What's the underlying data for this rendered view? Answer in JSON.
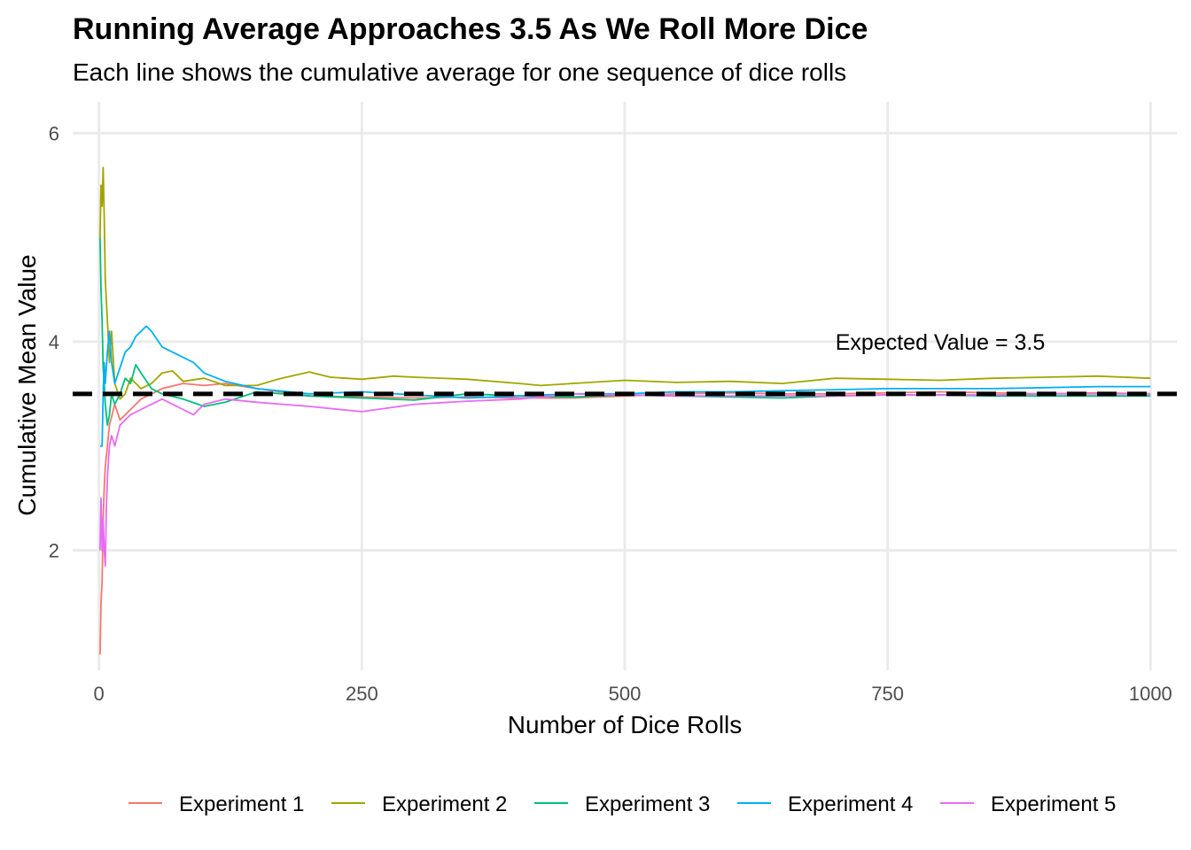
{
  "title": "Running Average Approaches 3.5 As We Roll More Dice",
  "subtitle": "Each line shows the cumulative average for one sequence of dice rolls",
  "chart_data": {
    "type": "line",
    "xlabel": "Number of Dice Rolls",
    "ylabel": "Cumulative Mean Value",
    "xlim": [
      -25,
      1025
    ],
    "ylim": [
      0.85,
      6.3
    ],
    "x_ticks": [
      0,
      250,
      500,
      750,
      1000
    ],
    "x_tick_labels": [
      "0",
      "250",
      "500",
      "750",
      "1000"
    ],
    "y_ticks": [
      2,
      4,
      6
    ],
    "y_tick_labels": [
      "2",
      "4",
      "6"
    ],
    "grid": true,
    "legend_position": "bottom",
    "reference_line": {
      "y": 3.5,
      "style": "dashed",
      "color": "#000000"
    },
    "annotation": {
      "text": "Expected Value = 3.5",
      "x": 800,
      "y": 4.0
    },
    "series": [
      {
        "name": "Experiment 1",
        "color": "#F8766D",
        "points": [
          [
            1,
            1.0
          ],
          [
            2,
            1.5
          ],
          [
            3,
            1.7
          ],
          [
            4,
            2.3
          ],
          [
            5,
            2.6
          ],
          [
            6,
            2.8
          ],
          [
            8,
            3.0
          ],
          [
            10,
            3.2
          ],
          [
            15,
            3.4
          ],
          [
            20,
            3.25
          ],
          [
            30,
            3.35
          ],
          [
            40,
            3.45
          ],
          [
            50,
            3.5
          ],
          [
            60,
            3.55
          ],
          [
            80,
            3.6
          ],
          [
            100,
            3.58
          ],
          [
            120,
            3.6
          ],
          [
            150,
            3.55
          ],
          [
            200,
            3.48
          ],
          [
            250,
            3.47
          ],
          [
            300,
            3.46
          ],
          [
            350,
            3.47
          ],
          [
            400,
            3.46
          ],
          [
            450,
            3.46
          ],
          [
            500,
            3.48
          ],
          [
            550,
            3.5
          ],
          [
            600,
            3.51
          ],
          [
            650,
            3.5
          ],
          [
            700,
            3.5
          ],
          [
            750,
            3.51
          ],
          [
            800,
            3.52
          ],
          [
            850,
            3.51
          ],
          [
            900,
            3.5
          ],
          [
            950,
            3.51
          ],
          [
            1000,
            3.5
          ]
        ]
      },
      {
        "name": "Experiment 2",
        "color": "#A3A500",
        "points": [
          [
            1,
            5.0
          ],
          [
            2,
            5.5
          ],
          [
            3,
            5.3
          ],
          [
            4,
            5.67
          ],
          [
            5,
            5.2
          ],
          [
            6,
            4.6
          ],
          [
            8,
            4.2
          ],
          [
            10,
            3.8
          ],
          [
            12,
            4.1
          ],
          [
            15,
            3.6
          ],
          [
            20,
            3.45
          ],
          [
            25,
            3.5
          ],
          [
            30,
            3.65
          ],
          [
            40,
            3.55
          ],
          [
            50,
            3.6
          ],
          [
            60,
            3.7
          ],
          [
            70,
            3.72
          ],
          [
            80,
            3.62
          ],
          [
            100,
            3.65
          ],
          [
            120,
            3.58
          ],
          [
            150,
            3.58
          ],
          [
            170,
            3.64
          ],
          [
            200,
            3.71
          ],
          [
            220,
            3.66
          ],
          [
            250,
            3.64
          ],
          [
            280,
            3.67
          ],
          [
            300,
            3.66
          ],
          [
            350,
            3.64
          ],
          [
            400,
            3.6
          ],
          [
            420,
            3.58
          ],
          [
            450,
            3.6
          ],
          [
            500,
            3.63
          ],
          [
            550,
            3.61
          ],
          [
            600,
            3.62
          ],
          [
            650,
            3.6
          ],
          [
            700,
            3.65
          ],
          [
            750,
            3.64
          ],
          [
            800,
            3.63
          ],
          [
            850,
            3.65
          ],
          [
            900,
            3.66
          ],
          [
            950,
            3.67
          ],
          [
            1000,
            3.65
          ]
        ]
      },
      {
        "name": "Experiment 3",
        "color": "#00BF7D",
        "points": [
          [
            1,
            5.0
          ],
          [
            2,
            4.5
          ],
          [
            3,
            4.2
          ],
          [
            4,
            3.75
          ],
          [
            5,
            3.6
          ],
          [
            6,
            3.4
          ],
          [
            8,
            3.2
          ],
          [
            10,
            3.3
          ],
          [
            12,
            3.5
          ],
          [
            15,
            3.4
          ],
          [
            20,
            3.5
          ],
          [
            25,
            3.65
          ],
          [
            30,
            3.6
          ],
          [
            35,
            3.78
          ],
          [
            40,
            3.7
          ],
          [
            50,
            3.55
          ],
          [
            60,
            3.5
          ],
          [
            80,
            3.45
          ],
          [
            100,
            3.38
          ],
          [
            120,
            3.42
          ],
          [
            150,
            3.52
          ],
          [
            200,
            3.48
          ],
          [
            250,
            3.46
          ],
          [
            300,
            3.44
          ],
          [
            350,
            3.5
          ],
          [
            400,
            3.48
          ],
          [
            450,
            3.47
          ],
          [
            500,
            3.49
          ],
          [
            550,
            3.48
          ],
          [
            600,
            3.47
          ],
          [
            650,
            3.46
          ],
          [
            700,
            3.48
          ],
          [
            750,
            3.49
          ],
          [
            800,
            3.49
          ],
          [
            850,
            3.48
          ],
          [
            900,
            3.48
          ],
          [
            950,
            3.48
          ],
          [
            1000,
            3.48
          ]
        ]
      },
      {
        "name": "Experiment 4",
        "color": "#00B0F6",
        "points": [
          [
            1,
            3.0
          ],
          [
            2,
            3.0
          ],
          [
            3,
            3.0
          ],
          [
            4,
            3.5
          ],
          [
            5,
            3.8
          ],
          [
            6,
            3.6
          ],
          [
            8,
            3.9
          ],
          [
            10,
            4.1
          ],
          [
            12,
            3.8
          ],
          [
            15,
            3.6
          ],
          [
            20,
            3.75
          ],
          [
            25,
            3.9
          ],
          [
            30,
            3.95
          ],
          [
            35,
            4.05
          ],
          [
            40,
            4.1
          ],
          [
            45,
            4.15
          ],
          [
            50,
            4.1
          ],
          [
            60,
            3.95
          ],
          [
            70,
            3.9
          ],
          [
            80,
            3.85
          ],
          [
            90,
            3.8
          ],
          [
            100,
            3.7
          ],
          [
            120,
            3.62
          ],
          [
            150,
            3.55
          ],
          [
            200,
            3.5
          ],
          [
            250,
            3.52
          ],
          [
            300,
            3.49
          ],
          [
            350,
            3.46
          ],
          [
            400,
            3.48
          ],
          [
            450,
            3.5
          ],
          [
            500,
            3.5
          ],
          [
            550,
            3.52
          ],
          [
            600,
            3.52
          ],
          [
            650,
            3.53
          ],
          [
            700,
            3.54
          ],
          [
            750,
            3.55
          ],
          [
            800,
            3.55
          ],
          [
            850,
            3.55
          ],
          [
            900,
            3.56
          ],
          [
            950,
            3.57
          ],
          [
            1000,
            3.57
          ]
        ]
      },
      {
        "name": "Experiment 5",
        "color": "#E76BF3",
        "points": [
          [
            1,
            2.0
          ],
          [
            2,
            2.5
          ],
          [
            3,
            2.0
          ],
          [
            4,
            2.3
          ],
          [
            5,
            2.0
          ],
          [
            6,
            1.85
          ],
          [
            7,
            2.4
          ],
          [
            8,
            2.7
          ],
          [
            10,
            3.0
          ],
          [
            12,
            3.1
          ],
          [
            15,
            3.0
          ],
          [
            20,
            3.2
          ],
          [
            25,
            3.25
          ],
          [
            30,
            3.3
          ],
          [
            40,
            3.35
          ],
          [
            50,
            3.4
          ],
          [
            60,
            3.45
          ],
          [
            70,
            3.4
          ],
          [
            80,
            3.35
          ],
          [
            90,
            3.3
          ],
          [
            100,
            3.4
          ],
          [
            120,
            3.45
          ],
          [
            150,
            3.42
          ],
          [
            200,
            3.38
          ],
          [
            250,
            3.33
          ],
          [
            300,
            3.4
          ],
          [
            350,
            3.43
          ],
          [
            400,
            3.45
          ],
          [
            450,
            3.5
          ],
          [
            500,
            3.49
          ],
          [
            550,
            3.48
          ],
          [
            600,
            3.48
          ],
          [
            650,
            3.48
          ],
          [
            700,
            3.48
          ],
          [
            750,
            3.49
          ],
          [
            800,
            3.49
          ],
          [
            850,
            3.49
          ],
          [
            900,
            3.5
          ],
          [
            950,
            3.5
          ],
          [
            1000,
            3.5
          ]
        ]
      }
    ]
  }
}
